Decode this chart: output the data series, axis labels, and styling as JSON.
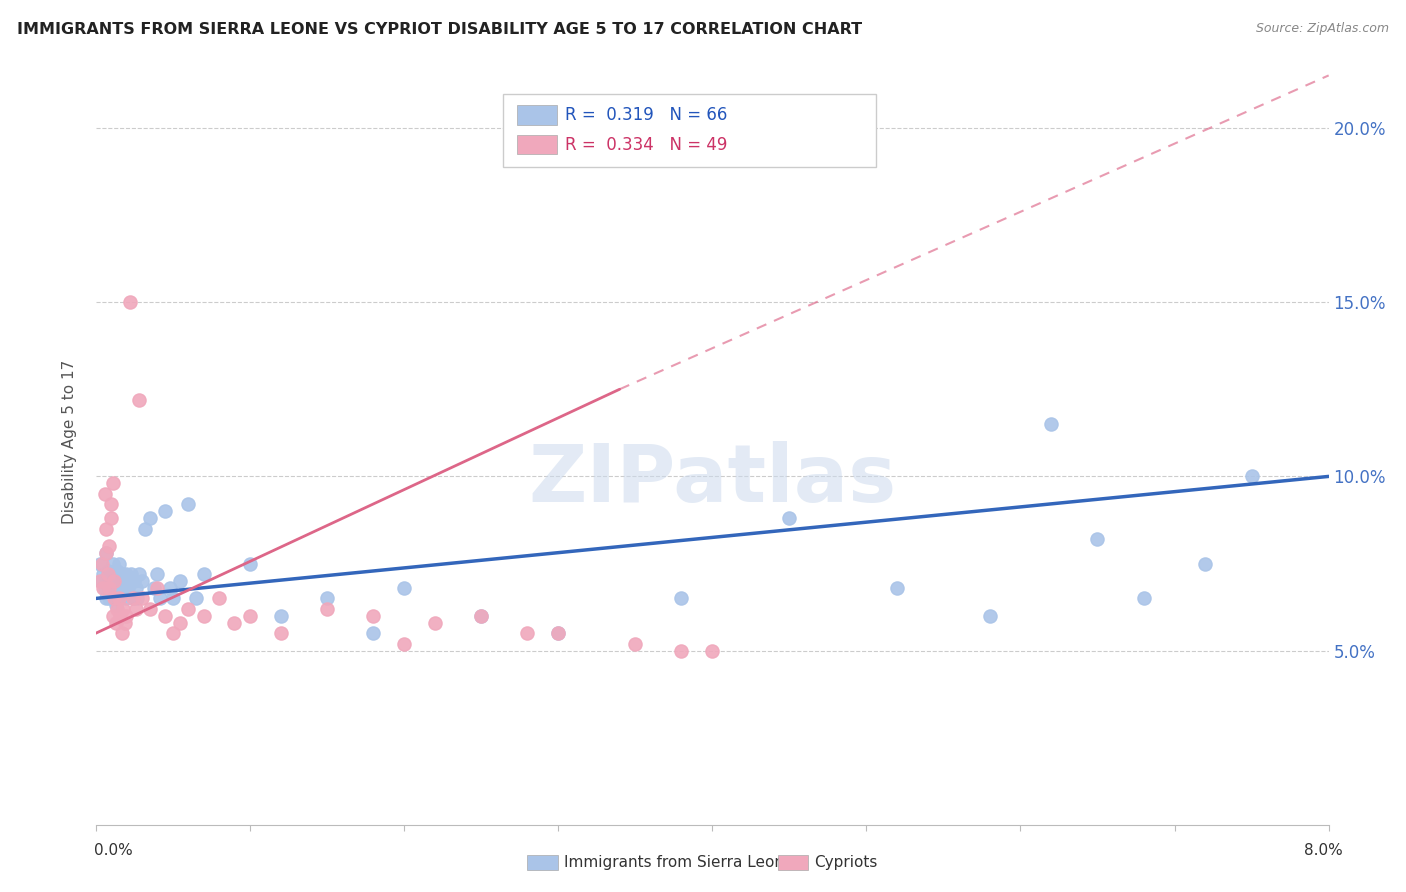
{
  "title": "IMMIGRANTS FROM SIERRA LEONE VS CYPRIOT DISABILITY AGE 5 TO 17 CORRELATION CHART",
  "source": "Source: ZipAtlas.com",
  "ylabel": "Disability Age 5 to 17",
  "legend_blue_r": "0.319",
  "legend_blue_n": "66",
  "legend_pink_r": "0.334",
  "legend_pink_n": "49",
  "legend_label_blue": "Immigrants from Sierra Leone",
  "legend_label_pink": "Cypriots",
  "blue_color": "#aac4e8",
  "blue_line_color": "#3366bb",
  "pink_color": "#f0a8bc",
  "pink_line_color": "#dd6688",
  "watermark_text": "ZIPatlas",
  "blue_x": [
    0.0003,
    0.0004,
    0.0005,
    0.0006,
    0.0007,
    0.0007,
    0.0008,
    0.0008,
    0.0009,
    0.0009,
    0.001,
    0.001,
    0.0011,
    0.0011,
    0.0012,
    0.0012,
    0.0013,
    0.0013,
    0.0014,
    0.0014,
    0.0015,
    0.0015,
    0.0016,
    0.0016,
    0.0017,
    0.0018,
    0.0019,
    0.002,
    0.002,
    0.0021,
    0.0022,
    0.0023,
    0.0024,
    0.0025,
    0.0026,
    0.0027,
    0.0028,
    0.003,
    0.0032,
    0.0035,
    0.0038,
    0.004,
    0.0042,
    0.0045,
    0.0048,
    0.005,
    0.0055,
    0.006,
    0.0065,
    0.007,
    0.01,
    0.012,
    0.015,
    0.018,
    0.02,
    0.025,
    0.03,
    0.038,
    0.045,
    0.052,
    0.058,
    0.062,
    0.065,
    0.068,
    0.072,
    0.075
  ],
  "blue_y": [
    0.075,
    0.07,
    0.072,
    0.068,
    0.065,
    0.078,
    0.07,
    0.073,
    0.065,
    0.072,
    0.07,
    0.068,
    0.065,
    0.075,
    0.072,
    0.068,
    0.063,
    0.07,
    0.065,
    0.073,
    0.068,
    0.075,
    0.07,
    0.065,
    0.072,
    0.068,
    0.07,
    0.072,
    0.065,
    0.068,
    0.07,
    0.072,
    0.065,
    0.07,
    0.068,
    0.065,
    0.072,
    0.07,
    0.085,
    0.088,
    0.068,
    0.072,
    0.065,
    0.09,
    0.068,
    0.065,
    0.07,
    0.092,
    0.065,
    0.072,
    0.075,
    0.06,
    0.065,
    0.055,
    0.068,
    0.06,
    0.055,
    0.065,
    0.088,
    0.068,
    0.06,
    0.115,
    0.082,
    0.065,
    0.075,
    0.1
  ],
  "pink_x": [
    0.0003,
    0.0004,
    0.0005,
    0.0006,
    0.0007,
    0.0007,
    0.0008,
    0.0009,
    0.0009,
    0.001,
    0.001,
    0.0011,
    0.0011,
    0.0012,
    0.0012,
    0.0013,
    0.0014,
    0.0015,
    0.0016,
    0.0017,
    0.0018,
    0.0019,
    0.002,
    0.0022,
    0.0024,
    0.0026,
    0.0028,
    0.003,
    0.0035,
    0.004,
    0.0045,
    0.005,
    0.0055,
    0.006,
    0.007,
    0.008,
    0.009,
    0.01,
    0.012,
    0.015,
    0.018,
    0.02,
    0.022,
    0.025,
    0.028,
    0.03,
    0.035,
    0.038,
    0.04
  ],
  "pink_y": [
    0.07,
    0.075,
    0.068,
    0.095,
    0.085,
    0.078,
    0.072,
    0.08,
    0.068,
    0.088,
    0.092,
    0.098,
    0.06,
    0.065,
    0.07,
    0.058,
    0.062,
    0.065,
    0.06,
    0.055,
    0.062,
    0.058,
    0.06,
    0.15,
    0.065,
    0.062,
    0.122,
    0.065,
    0.062,
    0.068,
    0.06,
    0.055,
    0.058,
    0.062,
    0.06,
    0.065,
    0.058,
    0.06,
    0.055,
    0.062,
    0.06,
    0.052,
    0.058,
    0.06,
    0.055,
    0.055,
    0.052,
    0.05,
    0.05
  ],
  "blue_line_x0": 0.0,
  "blue_line_y0": 0.065,
  "blue_line_x1": 0.08,
  "blue_line_y1": 0.1,
  "pink_line_solid_x0": 0.0,
  "pink_line_solid_y0": 0.055,
  "pink_line_solid_x1": 0.034,
  "pink_line_solid_y1": 0.125,
  "pink_line_dashed_x0": 0.034,
  "pink_line_dashed_y0": 0.125,
  "pink_line_dashed_x1": 0.08,
  "pink_line_dashed_y1": 0.215,
  "xlim": [
    0,
    0.08
  ],
  "ylim": [
    0,
    0.22
  ],
  "yticks": [
    0.05,
    0.1,
    0.15,
    0.2
  ],
  "yticklabels": [
    "5.0%",
    "10.0%",
    "15.0%",
    "20.0%"
  ]
}
